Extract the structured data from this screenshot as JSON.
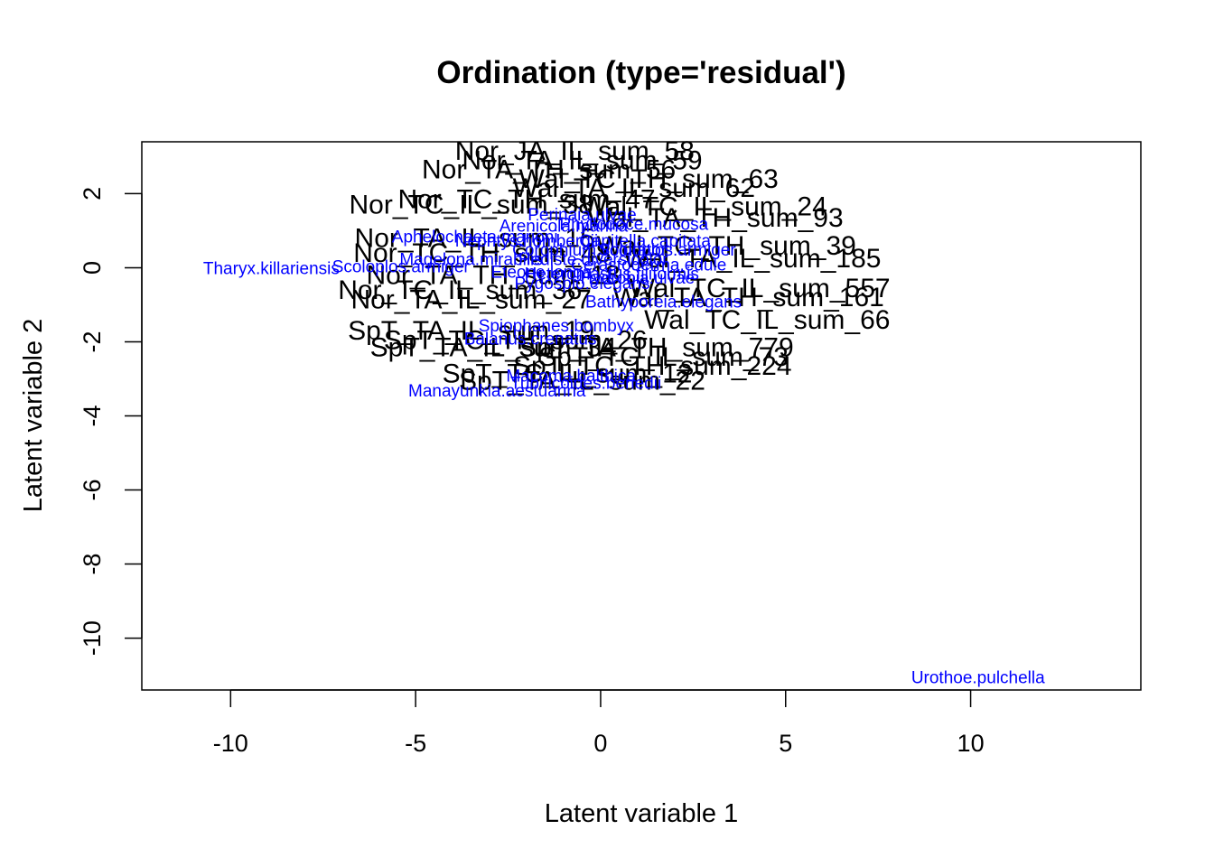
{
  "chart_data": {
    "type": "scatter",
    "title": "Ordination (type='residual')",
    "xlabel": "Latent variable 1",
    "ylabel": "Latent variable 2",
    "xlim": [
      -12.4,
      14.6
    ],
    "ylim": [
      -11.4,
      3.4
    ],
    "x_ticks": [
      -10,
      -5,
      0,
      5,
      10
    ],
    "y_ticks": [
      2,
      0,
      -2,
      -4,
      -6,
      -8,
      -10
    ],
    "grid": false,
    "colors": {
      "sites": "#000000",
      "species": "#0000ff"
    },
    "sites": [
      {
        "label": "Nor_JA_IL_sum_58",
        "x": -0.7,
        "y": 3.1
      },
      {
        "label": "Nor_TA_IL_sum_59",
        "x": -0.5,
        "y": 2.85
      },
      {
        "label": "Nor_TA_TH_sum_56",
        "x": -1.4,
        "y": 2.6
      },
      {
        "label": "Wal_TC_TH_sum_63",
        "x": 1.3,
        "y": 2.35
      },
      {
        "label": "Wal_TA_IL_sum_62",
        "x": 0.9,
        "y": 2.1
      },
      {
        "label": "Nor_TC_TH_sum_47",
        "x": -2.0,
        "y": 1.8
      },
      {
        "label": "Wal_TC_IL_sum_24",
        "x": 2.8,
        "y": 1.6
      },
      {
        "label": "Nor_TC_IL_sum_38",
        "x": -3.5,
        "y": 1.65
      },
      {
        "label": "Wal_TA_TH_sum_93",
        "x": 3.1,
        "y": 1.3
      },
      {
        "label": "Nor_TA_IL_sum_15",
        "x": -3.4,
        "y": 0.75
      },
      {
        "label": "Wal_TC_TH_sum_39",
        "x": 3.4,
        "y": 0.55
      },
      {
        "label": "Nor_TC_TH_sum_48",
        "x": -3.2,
        "y": 0.35
      },
      {
        "label": "Wal_TA_IL_sum_185",
        "x": 4.1,
        "y": 0.2
      },
      {
        "label": "Nor_TA_TH_sum_18",
        "x": -2.9,
        "y": -0.25
      },
      {
        "label": "Wal_TC_IL_sum_557",
        "x": 4.3,
        "y": -0.6
      },
      {
        "label": "Nor_TC_IL_sum_36",
        "x": -3.8,
        "y": -0.65
      },
      {
        "label": "Wal_TA_TH_sum_161",
        "x": 4.0,
        "y": -0.85
      },
      {
        "label": "Nor_TA_IL_sum_27",
        "x": -3.5,
        "y": -0.9
      },
      {
        "label": "Wal_TC_IL_sum_66",
        "x": 4.5,
        "y": -1.45
      },
      {
        "label": "SpT_TA_IL_sum_19",
        "x": -3.5,
        "y": -1.75
      },
      {
        "label": "SpT_TC_TH_sum_26",
        "x": -2.3,
        "y": -2.0
      },
      {
        "label": "SpT_TA_TH_sum_779",
        "x": 1.5,
        "y": -2.2
      },
      {
        "label": "SpT_TC_IL_sum_73",
        "x": 1.7,
        "y": -2.45
      },
      {
        "label": "SpT_TA_IL_sum_34",
        "x": -2.9,
        "y": -2.2
      },
      {
        "label": "SpT_TC_TH_sum_224",
        "x": 1.4,
        "y": -2.7
      },
      {
        "label": "SpT_TA_IL_sum_22",
        "x": -0.5,
        "y": -3.1
      },
      {
        "label": "SpT_TC_IL_sum_12",
        "x": -0.9,
        "y": -2.9
      }
    ],
    "species": [
      {
        "label": "Tharyx.killariensis",
        "x": -8.9,
        "y": -0.05
      },
      {
        "label": "Scoloplos.armiger",
        "x": -5.4,
        "y": 0.0
      },
      {
        "label": "Magelona.mirabilis",
        "x": -3.5,
        "y": 0.2
      },
      {
        "label": "Perinaia.ulvae",
        "x": -0.5,
        "y": 1.4
      },
      {
        "label": "Phyllodoce.mucosa",
        "x": 0.9,
        "y": 1.15
      },
      {
        "label": "Arenicola.marina",
        "x": -1.0,
        "y": 1.1
      },
      {
        "label": "Aphelochaeta.marioni",
        "x": -3.4,
        "y": 0.8
      },
      {
        "label": "Nephtys.hombergii",
        "x": -2.0,
        "y": 0.7
      },
      {
        "label": "Capitella.capitata",
        "x": 1.2,
        "y": 0.7
      },
      {
        "label": "Corophium.volutator",
        "x": -0.3,
        "y": 0.45
      },
      {
        "label": "Scoloplos.armiger",
        "x": 1.8,
        "y": 0.45
      },
      {
        "label": "Hediste.diversicolor",
        "x": -0.2,
        "y": 0.2
      },
      {
        "label": "Cerastoderma.edule",
        "x": 1.3,
        "y": 0.05
      },
      {
        "label": "Eteone.longa",
        "x": -1.6,
        "y": -0.15
      },
      {
        "label": "Heteromastus.filiformis",
        "x": 0.3,
        "y": -0.2
      },
      {
        "label": "Pygospio.elegans",
        "x": -0.5,
        "y": -0.45
      },
      {
        "label": "Hydrobia.ulvae",
        "x": 1.0,
        "y": -0.3
      },
      {
        "label": "Bathyporeia.elegans",
        "x": 1.7,
        "y": -0.95
      },
      {
        "label": "Spiophanes.bombyx",
        "x": -1.2,
        "y": -1.6
      },
      {
        "label": "Balanus.crenatus",
        "x": -1.9,
        "y": -1.95
      },
      {
        "label": "Macoma.balthica",
        "x": -0.8,
        "y": -2.95
      },
      {
        "label": "Tubificoides.benedii",
        "x": -0.4,
        "y": -3.15
      },
      {
        "label": "Manayunkia.aestuarina",
        "x": -2.8,
        "y": -3.35
      },
      {
        "label": "Urothoe.pulchella",
        "x": 10.2,
        "y": -11.1
      }
    ]
  }
}
